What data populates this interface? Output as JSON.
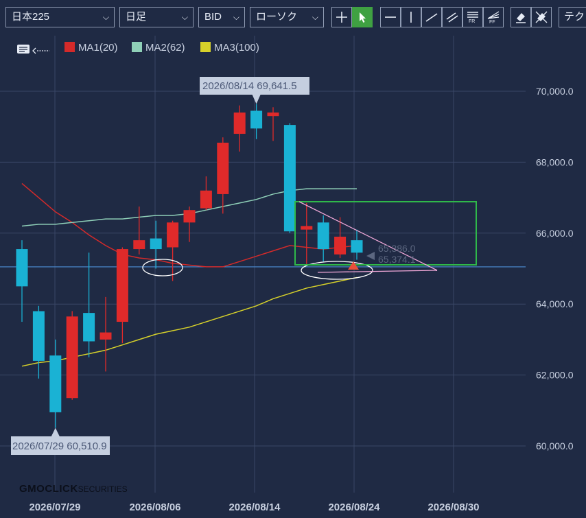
{
  "toolbar": {
    "symbol": "日本225",
    "period": "日足",
    "price_side": "BID",
    "chart_style": "ローソク",
    "tech_label": "テク",
    "tools": [
      "crosshair-icon",
      "pointer-icon",
      "hline-icon",
      "vline-icon",
      "trendline-icon",
      "channel-icon",
      "fibonacci-retracement-icon",
      "fibonacci-fan-icon",
      "eraser-icon",
      "eraser-all-icon"
    ]
  },
  "legend": {
    "ma1": {
      "label": "MA1(20)",
      "color": "#d42a2a"
    },
    "ma2": {
      "label": "MA2(62)",
      "color": "#8fd0b8"
    },
    "ma3": {
      "label": "MA3(100)",
      "color": "#d6d12a"
    }
  },
  "brand": {
    "name": "GMOCLICK",
    "suffix": "SECURITIES"
  },
  "chart_data": {
    "type": "candlestick",
    "x_ticks": [
      "2026/07/29",
      "2026/08/06",
      "2026/08/14",
      "2026/08/24",
      "2026/08/30"
    ],
    "y_ticks": [
      "60,000.0",
      "62,000.0",
      "64,000.0",
      "66,000.0",
      "68,000.0",
      "70,000.0"
    ],
    "ylim": [
      58700,
      71600
    ],
    "grid": true,
    "up_color": "#1ab2d4",
    "down_color": "#e02a2a",
    "candles": [
      {
        "o": 64500,
        "h": 65800,
        "l": 63500,
        "c": 65550,
        "color": "up"
      },
      {
        "o": 63800,
        "h": 63950,
        "l": 61900,
        "c": 62400,
        "color": "up"
      },
      {
        "o": 62550,
        "h": 63000,
        "l": 60511,
        "c": 60950,
        "color": "up"
      },
      {
        "o": 61350,
        "h": 63800,
        "l": 61300,
        "c": 63650,
        "color": "down"
      },
      {
        "o": 62950,
        "h": 65450,
        "l": 62500,
        "c": 63750,
        "color": "up"
      },
      {
        "o": 63000,
        "h": 64200,
        "l": 62100,
        "c": 63200,
        "color": "down"
      },
      {
        "o": 63500,
        "h": 65600,
        "l": 62900,
        "c": 65550,
        "color": "down"
      },
      {
        "o": 65800,
        "h": 66750,
        "l": 65400,
        "c": 65550,
        "color": "down"
      },
      {
        "o": 65550,
        "h": 66350,
        "l": 65000,
        "c": 65850,
        "color": "up"
      },
      {
        "o": 65600,
        "h": 66350,
        "l": 64650,
        "c": 66300,
        "color": "down"
      },
      {
        "o": 66300,
        "h": 66750,
        "l": 65750,
        "c": 66650,
        "color": "down"
      },
      {
        "o": 66700,
        "h": 67600,
        "l": 66650,
        "c": 67200,
        "color": "down"
      },
      {
        "o": 67100,
        "h": 68700,
        "l": 66550,
        "c": 68550,
        "color": "down"
      },
      {
        "o": 68800,
        "h": 69600,
        "l": 68300,
        "c": 69400,
        "color": "down"
      },
      {
        "o": 68950,
        "h": 69642,
        "l": 68650,
        "c": 69450,
        "color": "up"
      },
      {
        "o": 69400,
        "h": 69550,
        "l": 68600,
        "c": 69300,
        "color": "down"
      },
      {
        "o": 66050,
        "h": 69100,
        "l": 66000,
        "c": 69050,
        "color": "up"
      },
      {
        "o": 66200,
        "h": 66850,
        "l": 65100,
        "c": 66100,
        "color": "down"
      },
      {
        "o": 65550,
        "h": 66500,
        "l": 65200,
        "c": 66300,
        "color": "up"
      },
      {
        "o": 65900,
        "h": 66450,
        "l": 65300,
        "c": 65400,
        "color": "down"
      },
      {
        "o": 65450,
        "h": 66100,
        "l": 65250,
        "c": 65800,
        "color": "up"
      }
    ],
    "ma1": [
      67400,
      67000,
      66600,
      66300,
      65950,
      65650,
      65400,
      65300,
      65250,
      65150,
      65100,
      65050,
      65050,
      65200,
      65350,
      65500,
      65650,
      65600,
      65550,
      65600,
      65650
    ],
    "ma2": [
      66200,
      66250,
      66250,
      66300,
      66350,
      66400,
      66400,
      66450,
      66500,
      66500,
      66550,
      66650,
      66750,
      66850,
      66950,
      67100,
      67200,
      67250,
      67250,
      67250,
      67250
    ],
    "ma3": [
      62250,
      62350,
      62400,
      62500,
      62600,
      62700,
      62850,
      63000,
      63150,
      63250,
      63350,
      63500,
      63650,
      63800,
      63950,
      64150,
      64300,
      64450,
      64550,
      64650,
      64750
    ],
    "horizontal_line": 65050,
    "annotations": {
      "high": {
        "label": "2026/08/14 69,641.5",
        "index": 14,
        "value": 69641.5
      },
      "low": {
        "label": "2026/07/29 60,510.9",
        "index": 2,
        "value": 60510.9
      },
      "price_tags": [
        "65,386.0",
        "65,374.1"
      ]
    }
  }
}
